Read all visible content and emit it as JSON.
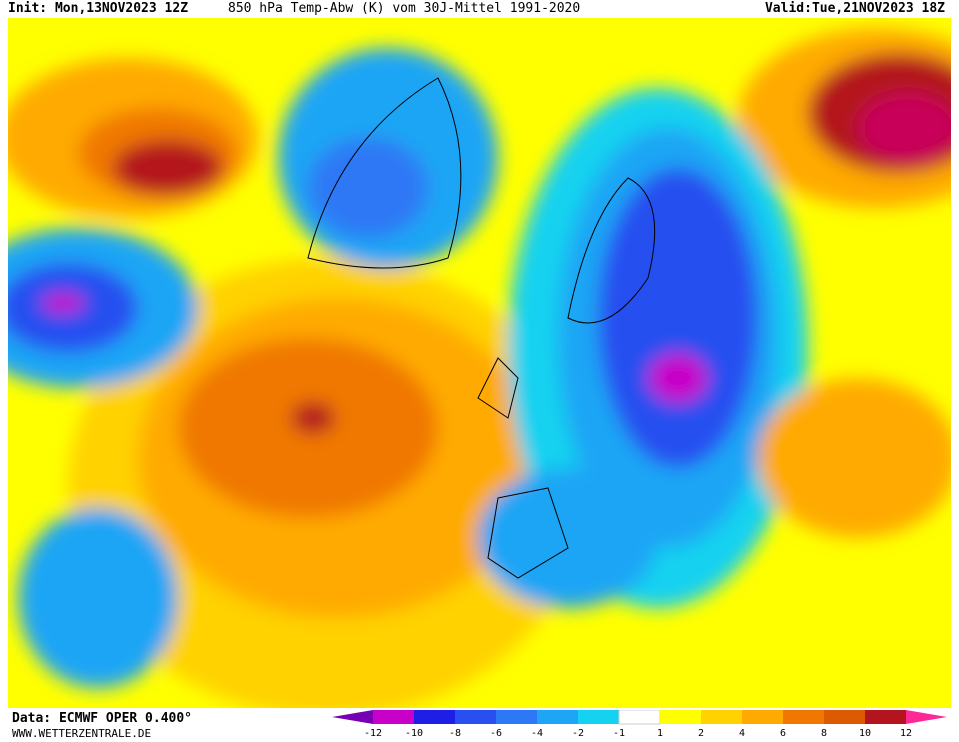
{
  "header": {
    "init_label": "Init:",
    "init_value": "Mon,13NOV2023 12Z",
    "parameter": "850 hPa Temp-Abw (K) vom 30J-Mittel 1991-2020",
    "valid_label": "Valid:",
    "valid_value": "Tue,21NOV2023 18Z"
  },
  "footer": {
    "data_source": "Data: ECMWF OPER 0.400°",
    "website": "WWW.WETTERZENTRALE.DE"
  },
  "colors": {
    "deep_magenta": "#c800c8",
    "purple": "#7800b4",
    "dark_blue": "#1e1ee6",
    "blue": "#2850f0",
    "mid_blue": "#2d78f5",
    "light_blue": "#1ea5f5",
    "cyan": "#14d2f0",
    "neutral": "#ffffff",
    "yellow": "#ffff00",
    "gold": "#ffd200",
    "orange": "#ffaa00",
    "dark_orange": "#f07800",
    "red_orange": "#dc5a00",
    "dark_red": "#b4141e",
    "crimson": "#c8005a",
    "pink": "#ff2896"
  },
  "legend": {
    "ticks": [
      "-12",
      "-10",
      "-8",
      "-6",
      "-4",
      "-2",
      "-1",
      "1",
      "2",
      "4",
      "6",
      "8",
      "10",
      "12"
    ]
  }
}
